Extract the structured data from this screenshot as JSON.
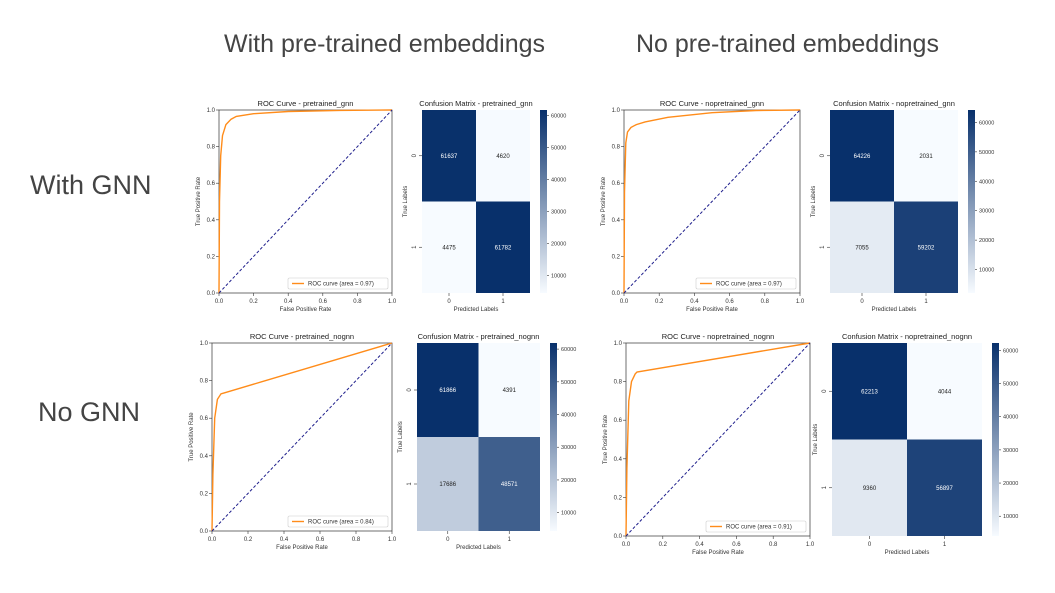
{
  "headers": {
    "col_pretrained": "With pre-trained embeddings",
    "col_nopretrained": "No pre-trained embeddings",
    "row_gnn": "With GNN",
    "row_nognn": "No GNN"
  },
  "colors": {
    "roc_line": "#ff8c1a",
    "diagonal": "#1f1f8c",
    "cm_low": "#f7fbff",
    "cm_high": "#08306b"
  },
  "chart_data": [
    {
      "type": "line",
      "title": "ROC Curve - pretrained_gnn",
      "xlabel": "False Positive Rate",
      "ylabel": "True Positive Rate",
      "xlim": [
        0,
        1
      ],
      "ylim": [
        0,
        1
      ],
      "xticks": [
        "0.0",
        "0.2",
        "0.4",
        "0.6",
        "0.8",
        "1.0"
      ],
      "yticks": [
        "0.0",
        "0.2",
        "0.4",
        "0.6",
        "0.8",
        "1.0"
      ],
      "legend": "ROC curve (area = 0.97)",
      "legend_position": "lower-right",
      "series": [
        {
          "name": "ROC curve (area = 0.97)",
          "x": [
            0,
            0.003,
            0.01,
            0.02,
            0.04,
            0.07,
            0.1,
            0.2,
            0.4,
            0.7,
            1.0
          ],
          "y": [
            0,
            0.5,
            0.75,
            0.86,
            0.92,
            0.95,
            0.965,
            0.98,
            0.992,
            0.998,
            1.0
          ]
        },
        {
          "name": "",
          "x": [
            0,
            1
          ],
          "y": [
            0,
            1
          ],
          "style": "dashed"
        }
      ]
    },
    {
      "type": "heatmap",
      "title": "Confusion Matrix - pretrained_gnn",
      "xlabel": "Predicted Labels",
      "ylabel": "True Labels",
      "x_categories": [
        "0",
        "1"
      ],
      "y_categories": [
        "0",
        "1"
      ],
      "values": [
        [
          61637,
          4620
        ],
        [
          4475,
          61782
        ]
      ],
      "colorbar_ticks": [
        "60000",
        "50000",
        "40000",
        "30000",
        "20000",
        "10000"
      ],
      "colorbar_range": [
        4475,
        61782
      ]
    },
    {
      "type": "line",
      "title": "ROC Curve - nopretrained_gnn",
      "xlabel": "False Positive Rate",
      "ylabel": "True Positive Rate",
      "xlim": [
        0,
        1
      ],
      "ylim": [
        0,
        1
      ],
      "xticks": [
        "0.0",
        "0.2",
        "0.4",
        "0.6",
        "0.8",
        "1.0"
      ],
      "yticks": [
        "0.0",
        "0.2",
        "0.4",
        "0.6",
        "0.8",
        "1.0"
      ],
      "legend": "ROC curve (area = 0.97)",
      "legend_position": "lower-right",
      "series": [
        {
          "name": "ROC curve (area = 0.97)",
          "x": [
            0,
            0.003,
            0.01,
            0.02,
            0.04,
            0.07,
            0.12,
            0.25,
            0.5,
            0.75,
            1.0
          ],
          "y": [
            0,
            0.55,
            0.82,
            0.88,
            0.905,
            0.92,
            0.935,
            0.96,
            0.985,
            0.997,
            1.0
          ]
        },
        {
          "name": "",
          "x": [
            0,
            1
          ],
          "y": [
            0,
            1
          ],
          "style": "dashed"
        }
      ]
    },
    {
      "type": "heatmap",
      "title": "Confusion Matrix - nopretrained_gnn",
      "xlabel": "Predicted Labels",
      "ylabel": "True Labels",
      "x_categories": [
        "0",
        "1"
      ],
      "y_categories": [
        "0",
        "1"
      ],
      "values": [
        [
          64226,
          2031
        ],
        [
          7055,
          59202
        ]
      ],
      "colorbar_ticks": [
        "60000",
        "50000",
        "40000",
        "30000",
        "20000",
        "10000"
      ],
      "colorbar_range": [
        2031,
        64226
      ]
    },
    {
      "type": "line",
      "title": "ROC Curve - pretrained_nognn",
      "xlabel": "False Positive Rate",
      "ylabel": "True Positive Rate",
      "xlim": [
        0,
        1
      ],
      "ylim": [
        0,
        1
      ],
      "xticks": [
        "0.0",
        "0.2",
        "0.4",
        "0.6",
        "0.8",
        "1.0"
      ],
      "yticks": [
        "0.0",
        "0.2",
        "0.4",
        "0.6",
        "0.8",
        "1.0"
      ],
      "legend": "ROC curve (area = 0.84)",
      "legend_position": "lower-right",
      "series": [
        {
          "name": "ROC curve (area = 0.84)",
          "x": [
            0,
            0.005,
            0.015,
            0.03,
            0.05,
            0.07,
            1.0
          ],
          "y": [
            0,
            0.3,
            0.6,
            0.7,
            0.73,
            0.735,
            1.0
          ]
        },
        {
          "name": "",
          "x": [
            0,
            1
          ],
          "y": [
            0,
            1
          ],
          "style": "dashed"
        }
      ]
    },
    {
      "type": "heatmap",
      "title": "Confusion Matrix - pretrained_nognn",
      "xlabel": "Predicted Labels",
      "ylabel": "True Labels",
      "x_categories": [
        "0",
        "1"
      ],
      "y_categories": [
        "0",
        "1"
      ],
      "values": [
        [
          61866,
          4391
        ],
        [
          17686,
          48571
        ]
      ],
      "colorbar_ticks": [
        "60000",
        "50000",
        "40000",
        "30000",
        "20000",
        "10000"
      ],
      "colorbar_range": [
        4391,
        61866
      ]
    },
    {
      "type": "line",
      "title": "ROC Curve - nopretrained_nognn",
      "xlabel": "False Positive Rate",
      "ylabel": "True Positive Rate",
      "xlim": [
        0,
        1
      ],
      "ylim": [
        0,
        1
      ],
      "xticks": [
        "0.0",
        "0.2",
        "0.4",
        "0.6",
        "0.8",
        "1.0"
      ],
      "yticks": [
        "0.0",
        "0.2",
        "0.4",
        "0.6",
        "0.8",
        "1.0"
      ],
      "legend": "ROC curve (area = 0.91)",
      "legend_position": "lower-right",
      "series": [
        {
          "name": "ROC curve (area = 0.91)",
          "x": [
            0,
            0.005,
            0.015,
            0.03,
            0.05,
            0.06,
            1.0
          ],
          "y": [
            0,
            0.35,
            0.7,
            0.8,
            0.84,
            0.85,
            1.0
          ]
        },
        {
          "name": "",
          "x": [
            0,
            1
          ],
          "y": [
            0,
            1
          ],
          "style": "dashed"
        }
      ]
    },
    {
      "type": "heatmap",
      "title": "Confusion Matrix - nopretrained_nognn",
      "xlabel": "Predicted Labels",
      "ylabel": "True Labels",
      "x_categories": [
        "0",
        "1"
      ],
      "y_categories": [
        "0",
        "1"
      ],
      "values": [
        [
          62213,
          4044
        ],
        [
          9360,
          56897
        ]
      ],
      "colorbar_ticks": [
        "60000",
        "50000",
        "40000",
        "30000",
        "20000",
        "10000"
      ],
      "colorbar_range": [
        4044,
        62213
      ]
    }
  ]
}
